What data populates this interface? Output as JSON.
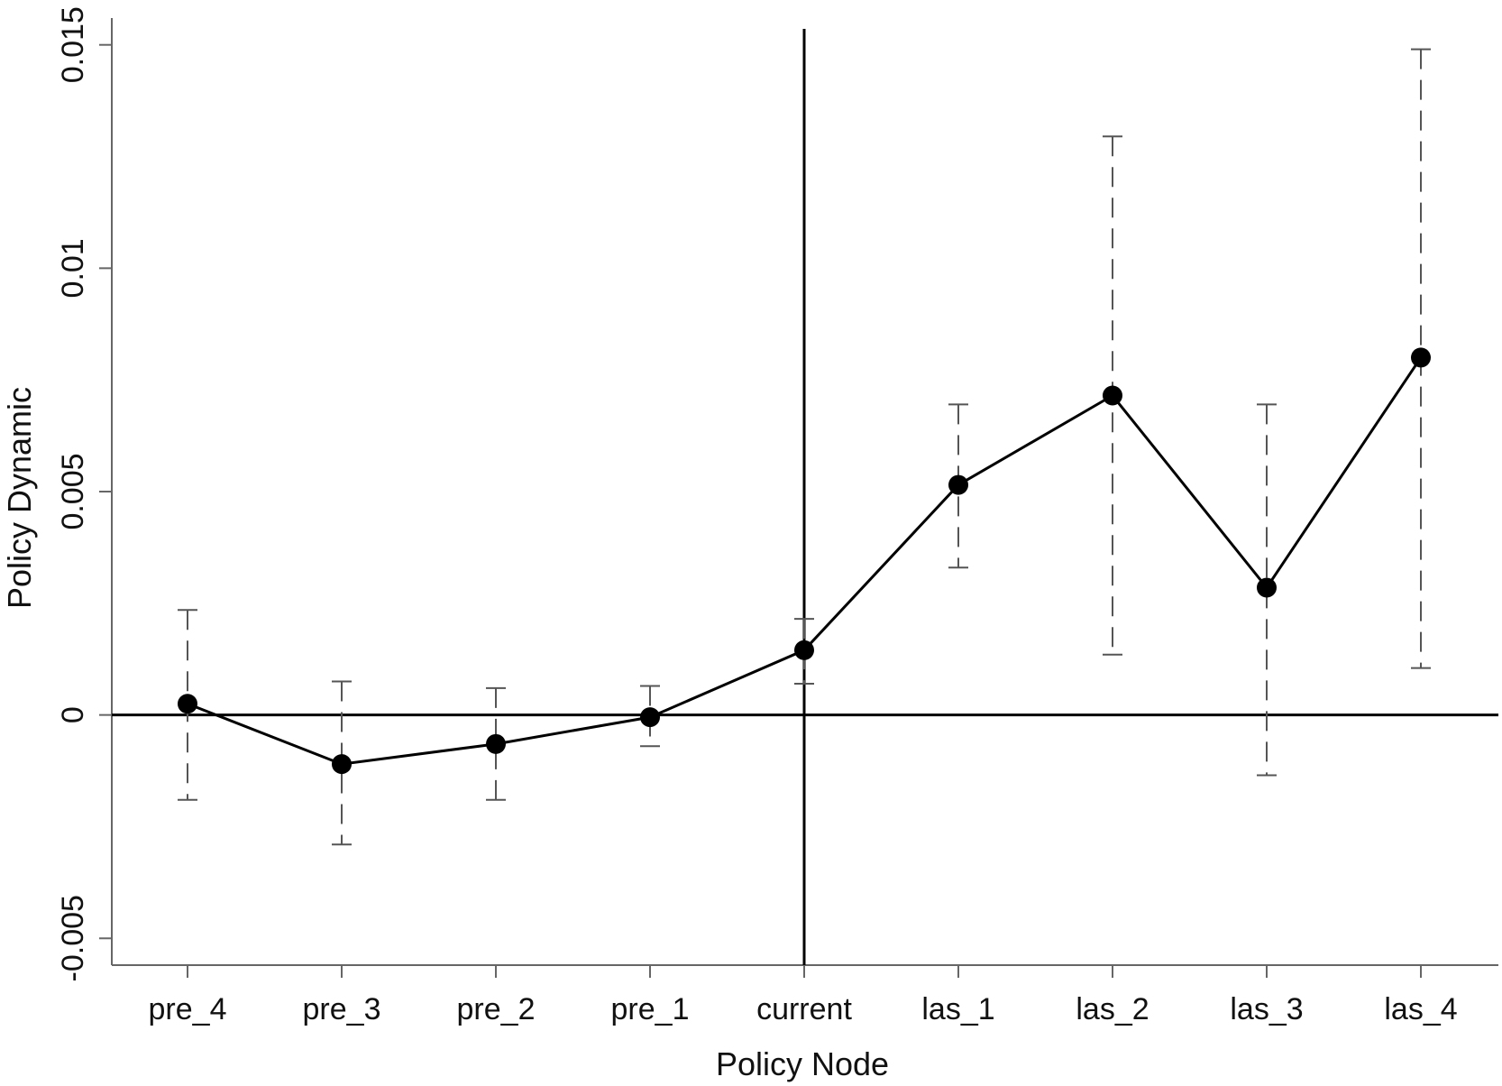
{
  "chart_data": {
    "type": "line",
    "title": "",
    "xlabel": "Policy Node",
    "ylabel": "Policy Dynamic",
    "categories": [
      "pre_4",
      "pre_3",
      "pre_2",
      "pre_1",
      "current",
      "las_1",
      "las_2",
      "las_3",
      "las_4"
    ],
    "series": [
      {
        "values": [
          0.00025,
          -0.0011,
          -0.00065,
          -5e-05,
          0.00145,
          0.00515,
          0.00715,
          0.00285,
          0.008
        ],
        "ci_lower": [
          -0.0019,
          -0.0029,
          -0.0019,
          -0.0007,
          0.0007,
          0.0033,
          0.00135,
          -0.00135,
          0.00105
        ],
        "ci_upper": [
          0.00235,
          0.00075,
          0.0006,
          0.00065,
          0.00215,
          0.00695,
          0.01295,
          0.00695,
          0.0149
        ]
      }
    ],
    "ylim": [
      -0.0056,
      0.0156
    ],
    "yticks": [
      -0.005,
      0,
      0.005,
      0.01,
      0.015
    ],
    "ytick_labels": [
      "-0.005",
      "0",
      "0.005",
      "0.01",
      "0.015"
    ],
    "reference_lines": {
      "horizontal_y": 0,
      "vertical_category": "current"
    },
    "grid": false,
    "legend": "none",
    "colors": {
      "line": "#000000",
      "marker": "#000000",
      "error_bar": "#555555",
      "axis": "#666666"
    }
  }
}
